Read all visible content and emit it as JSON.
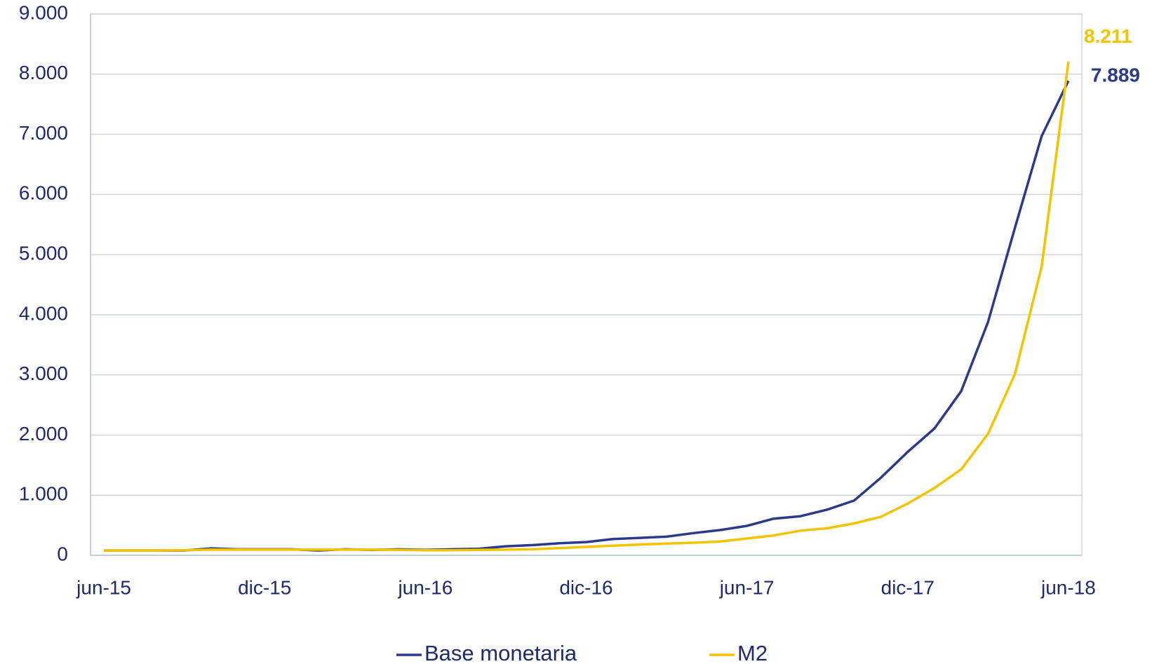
{
  "chart_data": {
    "type": "line",
    "categories": [
      "jun-15",
      null,
      null,
      null,
      null,
      null,
      "dic-15",
      null,
      null,
      null,
      null,
      null,
      "jun-16",
      null,
      null,
      null,
      null,
      null,
      "dic-16",
      null,
      null,
      null,
      null,
      null,
      "jun-17",
      null,
      null,
      null,
      null,
      null,
      "dic-17",
      null,
      null,
      null,
      null,
      null,
      "jun-18"
    ],
    "series": [
      {
        "name": "Base monetaria",
        "color": "#2b3a8a",
        "values": [
          80,
          80,
          80,
          80,
          115,
          100,
          100,
          100,
          80,
          100,
          90,
          100,
          90,
          100,
          110,
          150,
          170,
          200,
          220,
          270,
          290,
          310,
          370,
          420,
          490,
          610,
          650,
          760,
          910,
          1290,
          1720,
          2110,
          2730,
          3880,
          5440,
          6970,
          7889
        ],
        "value_labels": [
          null,
          null,
          null,
          null,
          null,
          null,
          null,
          null,
          null,
          null,
          null,
          null,
          null,
          null,
          null,
          null,
          null,
          null,
          null,
          null,
          null,
          null,
          null,
          null,
          null,
          null,
          null,
          null,
          null,
          null,
          null,
          null,
          null,
          null,
          null,
          null,
          "7.889"
        ]
      },
      {
        "name": "M2",
        "color": "#f5c400",
        "values": [
          80,
          80,
          80,
          85,
          95,
          95,
          95,
          95,
          95,
          95,
          95,
          90,
          85,
          85,
          90,
          95,
          100,
          120,
          140,
          160,
          180,
          195,
          210,
          230,
          280,
          330,
          410,
          450,
          530,
          640,
          860,
          1120,
          1430,
          2020,
          3010,
          4800,
          8211
        ],
        "value_labels": [
          null,
          null,
          null,
          null,
          null,
          null,
          null,
          null,
          null,
          null,
          null,
          null,
          null,
          null,
          null,
          null,
          null,
          null,
          null,
          null,
          null,
          null,
          null,
          null,
          null,
          null,
          null,
          null,
          null,
          null,
          null,
          null,
          null,
          null,
          null,
          null,
          "8.211"
        ]
      }
    ],
    "ylim": [
      0,
      9000
    ],
    "yticks": [
      0,
      {
        "value": 1000,
        "label": "1.000"
      },
      {
        "value": 2000,
        "label": "2.000"
      },
      {
        "value": 3000,
        "label": "3.000"
      },
      {
        "value": 4000,
        "label": "4.000"
      },
      {
        "value": 5000,
        "label": "5.000"
      },
      {
        "value": 6000,
        "label": "6.000"
      },
      {
        "value": 7000,
        "label": "7.000"
      },
      {
        "value": 8000,
        "label": "8.000"
      },
      {
        "value": 9000,
        "label": "9.000"
      }
    ],
    "grid": true,
    "legend": "bottom"
  }
}
